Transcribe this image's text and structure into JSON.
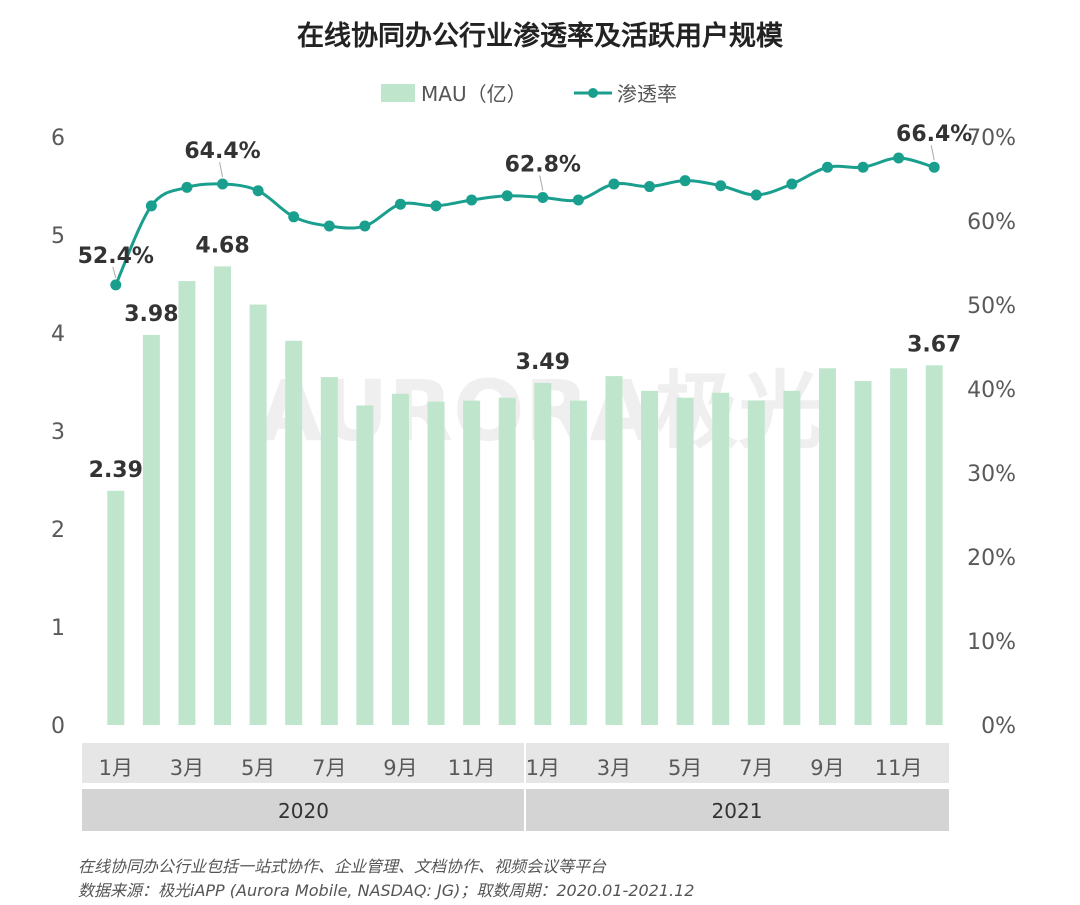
{
  "chart_data": {
    "type": "bar+line",
    "title": "在线协同办公行业渗透率及活跃用户规模",
    "categories": [
      "2020-01",
      "2020-02",
      "2020-03",
      "2020-04",
      "2020-05",
      "2020-06",
      "2020-07",
      "2020-08",
      "2020-09",
      "2020-10",
      "2020-11",
      "2020-12",
      "2021-01",
      "2021-02",
      "2021-03",
      "2021-04",
      "2021-05",
      "2021-06",
      "2021-07",
      "2021-08",
      "2021-09",
      "2021-10",
      "2021-11",
      "2021-12"
    ],
    "x_tick_labels": [
      "1月",
      "",
      "3月",
      "",
      "5月",
      "",
      "7月",
      "",
      "9月",
      "",
      "11月",
      "",
      "1月",
      "",
      "3月",
      "",
      "5月",
      "",
      "7月",
      "",
      "9月",
      "",
      "11月",
      ""
    ],
    "year_groups": [
      {
        "label": "2020",
        "start": 0,
        "end": 11
      },
      {
        "label": "2021",
        "start": 12,
        "end": 23
      }
    ],
    "series": [
      {
        "name": "MAU（亿）",
        "type": "bar",
        "axis": "left",
        "color": "#bfe6cc",
        "values": [
          2.39,
          3.98,
          4.53,
          4.68,
          4.29,
          3.92,
          3.55,
          3.26,
          3.38,
          3.3,
          3.31,
          3.34,
          3.49,
          3.31,
          3.56,
          3.41,
          3.34,
          3.39,
          3.31,
          3.41,
          3.64,
          3.51,
          3.64,
          3.67
        ]
      },
      {
        "name": "渗透率",
        "type": "line",
        "axis": "right",
        "color": "#1a9f8f",
        "unit": "%",
        "values": [
          52.4,
          61.8,
          64.0,
          64.4,
          63.6,
          60.5,
          59.4,
          59.4,
          62.0,
          61.8,
          62.5,
          63.0,
          62.8,
          62.5,
          64.4,
          64.1,
          64.8,
          64.2,
          63.1,
          64.4,
          66.4,
          66.4,
          67.5,
          66.4
        ]
      }
    ],
    "left_axis": {
      "ticks": [
        "0",
        "1",
        "2",
        "3",
        "4",
        "5",
        "6"
      ],
      "ylim": [
        0,
        6
      ]
    },
    "right_axis": {
      "ticks": [
        "0%",
        "10%",
        "20%",
        "30%",
        "40%",
        "50%",
        "60%",
        "70%"
      ],
      "ylim": [
        0,
        70
      ]
    },
    "bar_labels": [
      {
        "index": 0,
        "text": "2.39"
      },
      {
        "index": 1,
        "text": "3.98"
      },
      {
        "index": 3,
        "text": "4.68"
      },
      {
        "index": 12,
        "text": "3.49"
      },
      {
        "index": 23,
        "text": "3.67"
      }
    ],
    "line_labels": [
      {
        "index": 0,
        "text": "52.4%"
      },
      {
        "index": 3,
        "text": "64.4%"
      },
      {
        "index": 12,
        "text": "62.8%"
      },
      {
        "index": 23,
        "text": "66.4%"
      }
    ],
    "legend_position": "top-center",
    "grid": false
  },
  "watermark": "AURORA极光",
  "notes": {
    "line1": "在线协同办公行业包括一站式协作、企业管理、文档协作、视频会议等平台",
    "line2": "数据来源：极光iAPP (Aurora Mobile, NASDAQ: JG)；取数周期：2020.01-2021.12"
  }
}
